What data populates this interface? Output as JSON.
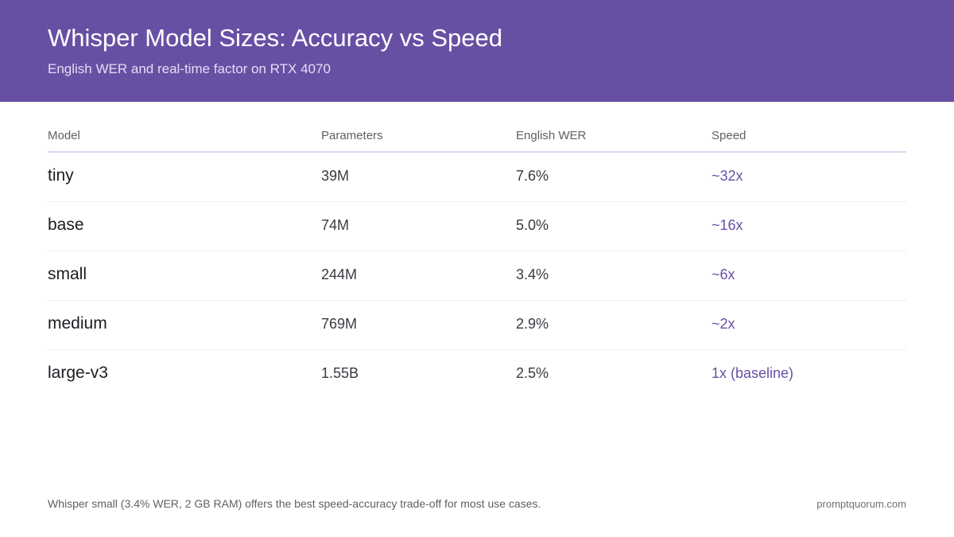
{
  "header": {
    "title": "Whisper Model Sizes: Accuracy vs Speed",
    "subtitle": "English WER and real-time factor on RTX 4070",
    "background": "#6750a4"
  },
  "table": {
    "columns": [
      "Model",
      "Parameters",
      "English WER",
      "Speed"
    ],
    "rows": [
      {
        "model": "tiny",
        "parameters": "39M",
        "wer": "7.6%",
        "speed": "~32x"
      },
      {
        "model": "base",
        "parameters": "74M",
        "wer": "5.0%",
        "speed": "~16x"
      },
      {
        "model": "small",
        "parameters": "244M",
        "wer": "3.4%",
        "speed": "~6x"
      },
      {
        "model": "medium",
        "parameters": "769M",
        "wer": "2.9%",
        "speed": "~2x"
      },
      {
        "model": "large-v3",
        "parameters": "1.55B",
        "wer": "2.5%",
        "speed": "1x (baseline)"
      }
    ],
    "accent_color": "#6750a4"
  },
  "footer": {
    "note": "Whisper small (3.4% WER, 2 GB RAM) offers the best speed-accuracy trade-off for most use cases.",
    "site": "promptquorum.com"
  }
}
